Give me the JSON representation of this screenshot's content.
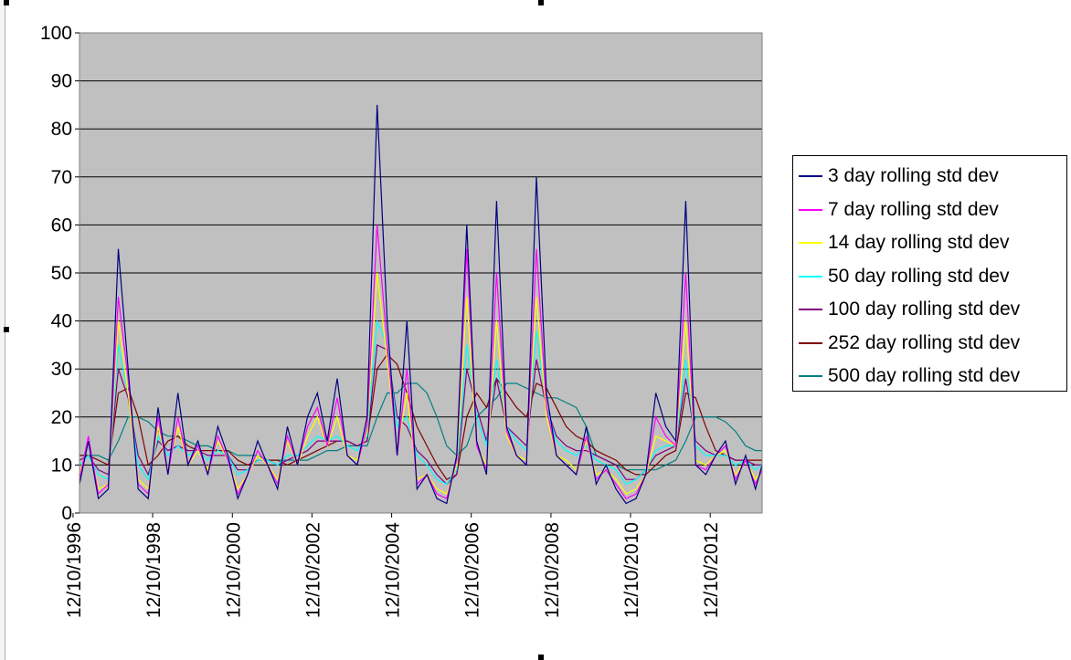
{
  "chart_data": {
    "type": "line",
    "title": "",
    "xlabel": "",
    "ylabel": "",
    "ylim": [
      0,
      100
    ],
    "yticks": [
      0,
      10,
      20,
      30,
      40,
      50,
      60,
      70,
      80,
      90,
      100
    ],
    "xticks": [
      "12/10/1996",
      "12/10/1998",
      "12/10/2000",
      "12/10/2002",
      "12/10/2004",
      "12/10/2006",
      "12/10/2008",
      "12/10/2010",
      "12/10/2012"
    ],
    "xrange": [
      "1996-12-10",
      "2014-01-31"
    ],
    "grid": "horizontal",
    "background": "#c0c0c0",
    "legend_position": "right",
    "x": [
      "1996-12-10",
      "1997-03-01",
      "1997-06-01",
      "1997-09-01",
      "1997-12-01",
      "1998-03-01",
      "1998-06-01",
      "1998-09-01",
      "1998-12-01",
      "1999-03-01",
      "1999-06-01",
      "1999-09-01",
      "1999-12-01",
      "2000-03-01",
      "2000-06-01",
      "2000-09-01",
      "2000-12-01",
      "2001-03-01",
      "2001-06-01",
      "2001-09-01",
      "2001-12-01",
      "2002-03-01",
      "2002-06-01",
      "2002-09-01",
      "2002-12-01",
      "2003-03-01",
      "2003-06-01",
      "2003-09-01",
      "2003-12-01",
      "2004-03-01",
      "2004-06-01",
      "2004-09-01",
      "2004-12-01",
      "2005-03-01",
      "2005-06-01",
      "2005-09-01",
      "2005-12-01",
      "2006-03-01",
      "2006-06-01",
      "2006-09-01",
      "2006-12-01",
      "2007-03-01",
      "2007-06-01",
      "2007-09-01",
      "2007-12-01",
      "2008-03-01",
      "2008-06-01",
      "2008-09-01",
      "2008-12-01",
      "2009-03-01",
      "2009-06-01",
      "2009-09-01",
      "2009-12-01",
      "2010-03-01",
      "2010-06-01",
      "2010-09-01",
      "2010-12-01",
      "2011-03-01",
      "2011-06-01",
      "2011-09-01",
      "2011-12-01",
      "2012-03-01",
      "2012-06-01",
      "2012-09-01",
      "2012-12-01",
      "2013-03-01",
      "2013-06-01",
      "2013-09-01",
      "2013-12-01",
      "2014-01-31"
    ],
    "series": [
      {
        "name": "3 day rolling std dev",
        "color": "#000080",
        "values": [
          6,
          15,
          3,
          5,
          55,
          30,
          5,
          3,
          22,
          8,
          25,
          10,
          15,
          8,
          18,
          12,
          3,
          8,
          15,
          10,
          5,
          18,
          10,
          20,
          25,
          15,
          28,
          12,
          10,
          20,
          85,
          40,
          12,
          40,
          5,
          8,
          3,
          2,
          12,
          60,
          15,
          8,
          65,
          18,
          12,
          10,
          70,
          25,
          12,
          10,
          8,
          18,
          6,
          10,
          5,
          2,
          3,
          8,
          25,
          18,
          15,
          65,
          10,
          8,
          12,
          15,
          6,
          12,
          5,
          10
        ]
      },
      {
        "name": "7 day rolling std dev",
        "color": "#ff00ff",
        "values": [
          7,
          16,
          4,
          6,
          45,
          28,
          6,
          4,
          20,
          8,
          20,
          10,
          14,
          8,
          16,
          11,
          4,
          8,
          13,
          10,
          6,
          16,
          10,
          18,
          22,
          14,
          24,
          12,
          10,
          18,
          60,
          35,
          12,
          30,
          6,
          8,
          4,
          3,
          11,
          55,
          14,
          9,
          50,
          17,
          12,
          10,
          55,
          22,
          12,
          10,
          8,
          16,
          7,
          9,
          6,
          3,
          4,
          8,
          20,
          16,
          14,
          50,
          10,
          9,
          12,
          14,
          7,
          11,
          6,
          9
        ]
      },
      {
        "name": "14 day rolling std dev",
        "color": "#ffff00",
        "values": [
          8,
          15,
          5,
          6,
          40,
          25,
          7,
          5,
          18,
          9,
          18,
          10,
          13,
          9,
          15,
          11,
          5,
          8,
          12,
          10,
          7,
          15,
          10,
          16,
          20,
          14,
          20,
          12,
          11,
          17,
          50,
          32,
          13,
          25,
          7,
          8,
          5,
          4,
          10,
          45,
          14,
          10,
          40,
          16,
          12,
          11,
          45,
          20,
          12,
          11,
          9,
          15,
          8,
          9,
          7,
          4,
          5,
          8,
          16,
          15,
          14,
          40,
          11,
          10,
          12,
          13,
          8,
          11,
          7,
          9
        ]
      },
      {
        "name": "50 day rolling std dev",
        "color": "#00ffff",
        "values": [
          10,
          12,
          8,
          7,
          35,
          25,
          10,
          7,
          16,
          12,
          14,
          12,
          13,
          11,
          13,
          12,
          8,
          9,
          11,
          11,
          10,
          12,
          12,
          14,
          16,
          15,
          16,
          14,
          13,
          16,
          40,
          35,
          18,
          20,
          12,
          10,
          7,
          6,
          9,
          35,
          20,
          14,
          32,
          18,
          15,
          13,
          38,
          22,
          15,
          13,
          12,
          14,
          11,
          10,
          9,
          6,
          7,
          9,
          13,
          14,
          14,
          32,
          14,
          12,
          12,
          12,
          10,
          11,
          9,
          10
        ]
      },
      {
        "name": "100 day rolling std dev",
        "color": "#800080",
        "values": [
          11,
          12,
          9,
          8,
          30,
          24,
          12,
          8,
          15,
          13,
          14,
          13,
          13,
          12,
          12,
          12,
          9,
          9,
          11,
          11,
          10,
          11,
          12,
          13,
          15,
          15,
          15,
          15,
          14,
          15,
          35,
          34,
          20,
          18,
          13,
          11,
          8,
          6,
          8,
          30,
          22,
          15,
          28,
          18,
          16,
          14,
          32,
          22,
          16,
          14,
          13,
          13,
          12,
          11,
          10,
          7,
          7,
          9,
          12,
          13,
          14,
          28,
          15,
          13,
          12,
          12,
          11,
          11,
          10,
          10
        ]
      },
      {
        "name": "252 day rolling std dev",
        "color": "#800000",
        "values": [
          12,
          12,
          11,
          10,
          25,
          26,
          20,
          10,
          12,
          15,
          16,
          14,
          13,
          13,
          13,
          13,
          11,
          10,
          11,
          11,
          11,
          10,
          11,
          12,
          13,
          14,
          15,
          15,
          14,
          15,
          30,
          33,
          31,
          25,
          18,
          14,
          10,
          7,
          8,
          20,
          25,
          22,
          28,
          25,
          22,
          20,
          27,
          26,
          22,
          18,
          16,
          15,
          13,
          12,
          11,
          9,
          8,
          8,
          10,
          12,
          13,
          25,
          24,
          18,
          13,
          12,
          11,
          11,
          11,
          11
        ]
      },
      {
        "name": "500 day rolling std dev",
        "color": "#008080",
        "values": [
          12,
          12,
          12,
          11,
          15,
          20,
          20,
          19,
          17,
          16,
          16,
          15,
          14,
          14,
          13,
          13,
          12,
          12,
          12,
          11,
          11,
          11,
          11,
          11,
          12,
          13,
          13,
          14,
          14,
          14,
          20,
          25,
          25,
          27,
          27,
          25,
          20,
          14,
          12,
          14,
          20,
          22,
          24,
          27,
          27,
          26,
          25,
          24,
          24,
          23,
          22,
          18,
          12,
          11,
          10,
          9,
          9,
          9,
          9,
          10,
          11,
          15,
          20,
          20,
          20,
          19,
          17,
          14,
          13,
          13
        ]
      }
    ]
  }
}
